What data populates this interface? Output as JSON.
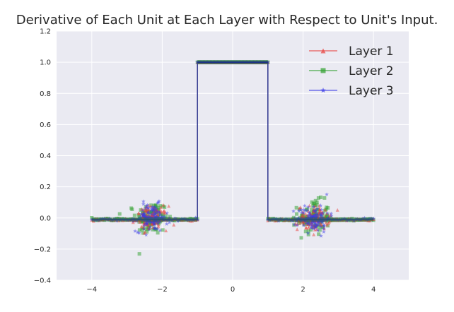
{
  "chart_data": {
    "type": "scatter",
    "title": "Derivative of Each Unit at Each Layer with Respect to Unit's Input.",
    "xlabel": "",
    "ylabel": "",
    "xlim": [
      -5,
      5
    ],
    "ylim": [
      -0.4,
      1.2
    ],
    "xticks": [
      -4,
      -2,
      0,
      2,
      4
    ],
    "yticks": [
      -0.4,
      -0.2,
      0.0,
      0.2,
      0.4,
      0.6,
      0.8,
      1.0,
      1.2
    ],
    "xtick_labels": [
      "−4",
      "−2",
      "0",
      "2",
      "4"
    ],
    "ytick_labels": [
      "−0.4",
      "−0.2",
      "0.0",
      "0.2",
      "0.4",
      "0.6",
      "0.8",
      "1.0",
      "1.2"
    ],
    "grid": true,
    "legend_position": "top-right",
    "series": [
      {
        "name": "Layer 1",
        "color": "#e8403c",
        "marker": "triangle",
        "step": {
          "x": [
            -4,
            -1,
            -1,
            1,
            1,
            4
          ],
          "y": [
            -0.01,
            -0.01,
            1.0,
            1.0,
            -0.01,
            -0.01
          ]
        },
        "clusters": [
          {
            "center": -2.3,
            "spread_x": 0.5,
            "spread_y": 0.07
          },
          {
            "center": 2.3,
            "spread_x": 0.5,
            "spread_y": 0.07
          }
        ]
      },
      {
        "name": "Layer 2",
        "color": "#2ea02c",
        "marker": "square",
        "step": {
          "x": [
            -4,
            -1,
            -1,
            1,
            1,
            4
          ],
          "y": [
            -0.01,
            -0.01,
            1.0,
            1.0,
            -0.01,
            -0.01
          ]
        },
        "clusters": [
          {
            "center": -2.3,
            "spread_x": 0.5,
            "spread_y": 0.1
          },
          {
            "center": 2.3,
            "spread_x": 0.5,
            "spread_y": 0.1
          }
        ]
      },
      {
        "name": "Layer 3",
        "color": "#3a3ae8",
        "marker": "star",
        "step": {
          "x": [
            -4,
            -1,
            -1,
            1,
            1,
            4
          ],
          "y": [
            -0.01,
            -0.01,
            1.0,
            1.0,
            -0.01,
            -0.01
          ]
        },
        "clusters": [
          {
            "center": -2.3,
            "spread_x": 0.5,
            "spread_y": 0.08
          },
          {
            "center": 2.3,
            "spread_x": 0.5,
            "spread_y": 0.08
          }
        ]
      }
    ]
  }
}
